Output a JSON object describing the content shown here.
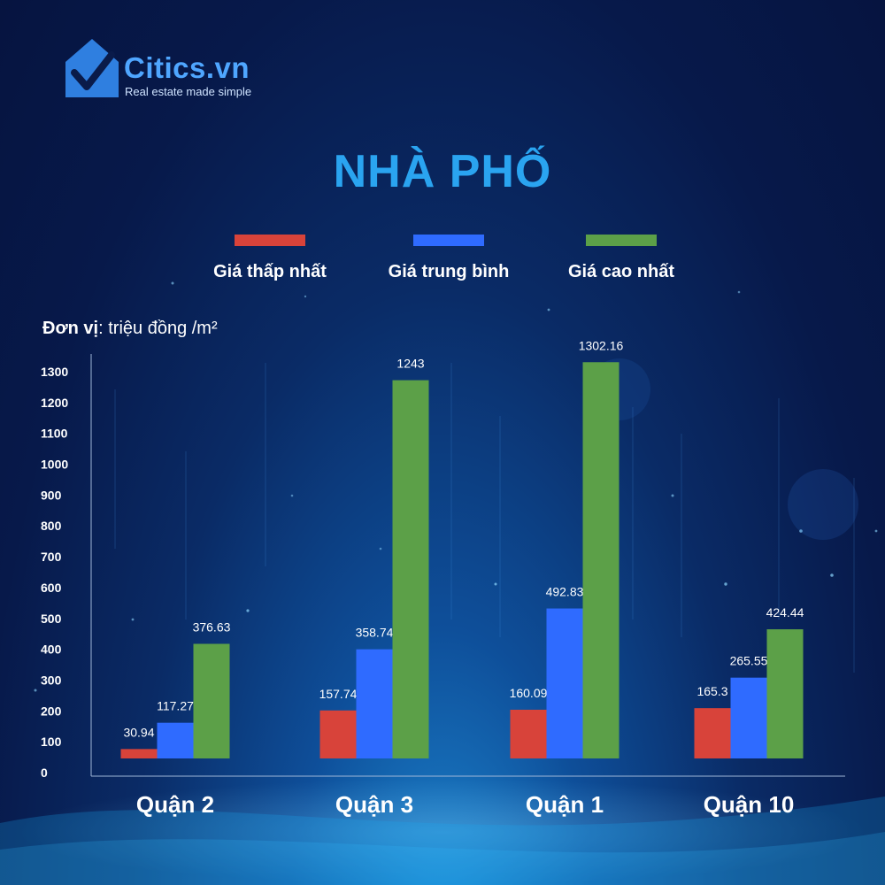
{
  "brand": {
    "name": "Citics.vn",
    "tagline": "Real estate made simple",
    "color": "#4fa6ff"
  },
  "title": "NHÀ PHỐ",
  "unit_label": "Đơn vị",
  "unit_value": ": triệu đồng /m²",
  "chart_data": {
    "type": "bar",
    "title": "NHÀ PHỐ",
    "categories": [
      "Quận 2",
      "Quận 3",
      "Quận 1",
      "Quận 10"
    ],
    "series": [
      {
        "name": "Giá thấp nhất",
        "color": "#d8433a",
        "values": [
          30.94,
          157.74,
          160.09,
          165.3
        ]
      },
      {
        "name": "Giá trung bình",
        "color": "#2f6bff",
        "values": [
          117.27,
          358.74,
          492.83,
          265.55
        ]
      },
      {
        "name": "Giá cao nhất",
        "color": "#5ca048",
        "values": [
          376.63,
          1243,
          1302.16,
          424.44
        ]
      }
    ],
    "yticks": [
      0,
      100,
      200,
      300,
      400,
      500,
      600,
      700,
      800,
      900,
      1000,
      1100,
      1200,
      1300
    ],
    "ylim": [
      0,
      1300
    ],
    "legend": "top-center",
    "grid": false
  }
}
